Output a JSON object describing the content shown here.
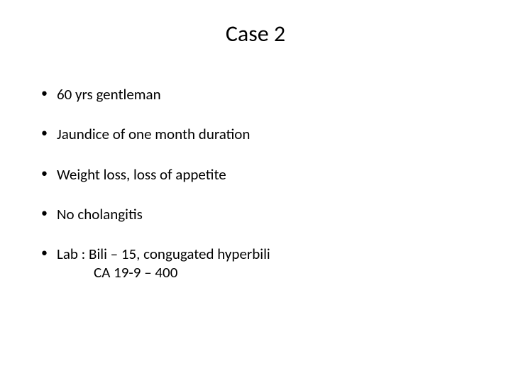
{
  "title": "Case 2",
  "bullets": [
    {
      "text": "60 yrs gentleman"
    },
    {
      "text": "Jaundice of one month duration"
    },
    {
      "text": "Weight loss, loss of appetite"
    },
    {
      "text": "No cholangitis"
    },
    {
      "text": "Lab : Bili – 15, congugated hyperbili",
      "sub": "CA 19-9 – 400"
    }
  ],
  "colors": {
    "background": "#ffffff",
    "text": "#000000"
  },
  "typography": {
    "title_fontsize": 32,
    "body_fontsize": 21,
    "font_family": "Calibri"
  }
}
